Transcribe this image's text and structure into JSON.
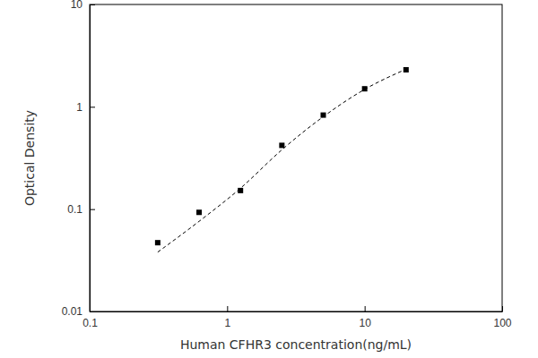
{
  "chart_data": {
    "type": "scatter",
    "x_label": "Human CFHR3 concentration(ng/mL)",
    "y_label": "Optical Density",
    "log": true,
    "xlim": [
      0.1,
      100
    ],
    "xticks": [
      0.1,
      1,
      10,
      100
    ],
    "ylim": [
      0.01,
      10
    ],
    "yticks": [
      0.01,
      0.1,
      1,
      10
    ],
    "series": [
      {
        "type": "scatter",
        "marker": "square",
        "color": "#000000",
        "x": [
          0.3125,
          0.625,
          1.25,
          2.5,
          5,
          10,
          20
        ],
        "values": [
          0.047,
          0.093,
          0.152,
          0.42,
          0.83,
          1.5,
          2.3
        ]
      },
      {
        "type": "line",
        "line_style": "dashed",
        "color": "#000000",
        "x": [
          0.3125,
          0.625,
          1.25,
          2.5,
          5,
          10,
          20
        ],
        "values": [
          0.038,
          0.076,
          0.16,
          0.38,
          0.8,
          1.48,
          2.33
        ]
      }
    ]
  }
}
